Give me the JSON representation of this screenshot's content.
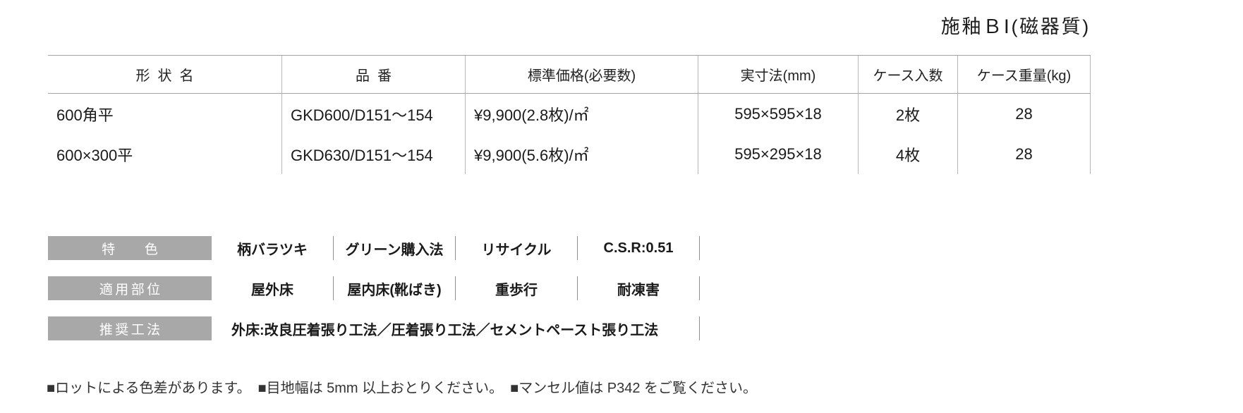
{
  "page": {
    "title": "施釉ＢⅠ(磁器質)"
  },
  "product_table": {
    "columns": {
      "shape": "形状名",
      "code": "品番",
      "price": "標準価格(必要数)",
      "size": "実寸法(mm)",
      "qty": "ケース入数",
      "weight": "ケース重量(kg)"
    },
    "rows": [
      {
        "shape": "600角平",
        "code": "GKD600/D151～154",
        "price": "¥9,900(2.8枚)/㎡",
        "size": "595×595×18",
        "qty": "2枚",
        "weight": "28"
      },
      {
        "shape": "600×300平",
        "code": "GKD630/D151～154",
        "price": "¥9,900(5.6枚)/㎡",
        "size": "595×295×18",
        "qty": "4枚",
        "weight": "28"
      }
    ]
  },
  "spec_rows": [
    {
      "label": "特色",
      "items": [
        "柄バラツキ",
        "グリーン購入法",
        "リサイクル",
        "C.S.R:0.51"
      ]
    },
    {
      "label": "適用部位",
      "items": [
        "屋外床",
        "屋内床(靴ばき)",
        "重歩行",
        "耐凍害"
      ]
    },
    {
      "label": "推奨工法",
      "items": [
        "外床:改良圧着張り工法／圧着張り工法／セメントペースト張り工法"
      ]
    }
  ],
  "notes": [
    "■ロットによる色差があります。",
    "■目地幅は 5mm 以上おとりください。",
    "■マンセル値は P342 をご覧ください。"
  ],
  "colors": {
    "label_bg": "#a8a8a8",
    "rule_line": "#a3a3a3",
    "text": "#1a1a1a"
  }
}
